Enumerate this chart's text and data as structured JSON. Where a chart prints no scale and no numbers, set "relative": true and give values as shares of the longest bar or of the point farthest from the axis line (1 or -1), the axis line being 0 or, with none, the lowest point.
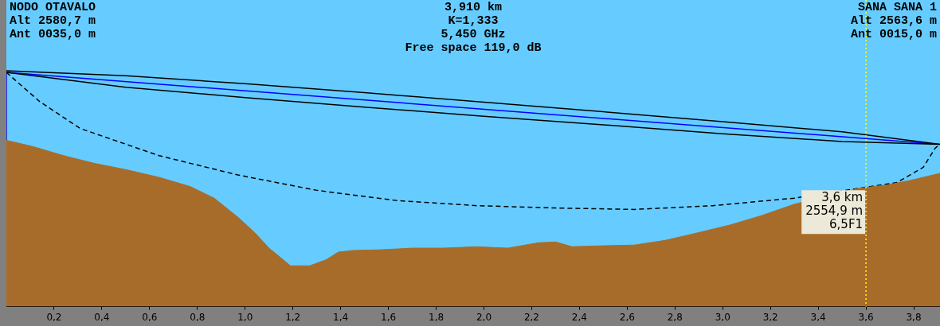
{
  "chart_data": {
    "type": "area",
    "relative": true,
    "annotations": [
      "NODO OTAVALO\nAlt 2580,7 m\nAnt 0035,0 m",
      "3,910 km",
      "K=1,333",
      "5,450 GHz",
      "Free space 119,0 dB",
      "SANA SANA 1\nAlt 2563,6 m\nAnt 0015,0 m",
      {
        "text": "3,6 km\n2554,9 m\n6,5F1",
        "x": 3.6,
        "y": 0.493
      }
    ],
    "xlim": [
      0,
      3.91
    ],
    "tick_labels": "x",
    "grid": false,
    "legend": false,
    "xticks": [
      {
        "value": 0.2,
        "label": "0,2"
      },
      {
        "value": 0.4,
        "label": "0,4"
      },
      {
        "value": 0.6,
        "label": "0,6"
      },
      {
        "value": 0.8,
        "label": "0,8"
      },
      {
        "value": 1.0,
        "label": "1,0"
      },
      {
        "value": 1.2,
        "label": "1,2"
      },
      {
        "value": 1.4,
        "label": "1,4"
      },
      {
        "value": 1.6,
        "label": "1,6"
      },
      {
        "value": 1.8,
        "label": "1,8"
      },
      {
        "value": 2.0,
        "label": "2,0"
      },
      {
        "value": 2.2,
        "label": "2,2"
      },
      {
        "value": 2.4,
        "label": "2,4"
      },
      {
        "value": 2.6,
        "label": "2,6"
      },
      {
        "value": 2.8,
        "label": "2,8"
      },
      {
        "value": 3.0,
        "label": "3,0"
      },
      {
        "value": 3.2,
        "label": "3,2"
      },
      {
        "value": 3.4,
        "label": "3,4"
      },
      {
        "value": 3.6,
        "label": "3,6"
      },
      {
        "value": 3.8,
        "label": "3,8"
      }
    ],
    "ref_lines": [
      {
        "axis": "x",
        "value": 3.6,
        "color": "#ffff00",
        "line_style": "dotted"
      }
    ],
    "series": [
      {
        "type": "area",
        "color": "#a86c2a",
        "x": [
          0,
          0.11,
          0.24,
          0.37,
          0.5,
          0.64,
          0.77,
          0.87,
          0.97,
          1.04,
          1.1,
          1.19,
          1.27,
          1.34,
          1.39,
          1.45,
          1.57,
          1.7,
          1.83,
          1.97,
          2.1,
          2.23,
          2.3,
          2.37,
          2.5,
          2.63,
          2.76,
          2.9,
          3.03,
          3.16,
          3.3,
          3.54,
          3.56,
          3.69,
          3.79,
          3.91
        ],
        "values": [
          0.705,
          0.679,
          0.64,
          0.607,
          0.581,
          0.548,
          0.509,
          0.46,
          0.379,
          0.314,
          0.248,
          0.173,
          0.173,
          0.199,
          0.231,
          0.238,
          0.241,
          0.248,
          0.248,
          0.254,
          0.248,
          0.271,
          0.274,
          0.254,
          0.258,
          0.261,
          0.281,
          0.314,
          0.346,
          0.385,
          0.434,
          0.493,
          0.5,
          0.516,
          0.536,
          0.565
        ]
      },
      {
        "type": "line",
        "color": "#000000",
        "x": [
          0,
          0.5,
          1,
          1.5,
          2,
          2.5,
          3,
          3.5,
          3.91,
          3.5,
          3,
          2.5,
          2,
          1.5,
          1,
          0.5,
          0
        ],
        "values": [
          1.0,
          0.979,
          0.945,
          0.907,
          0.867,
          0.826,
          0.784,
          0.741,
          0.688,
          0.7,
          0.733,
          0.771,
          0.807,
          0.846,
          0.886,
          0.93,
          0.993
        ]
      },
      {
        "type": "line",
        "color": "#0000ff",
        "x": [
          0,
          3.91
        ],
        "values": [
          0.993,
          0.688
        ]
      },
      {
        "type": "line",
        "color": "#000000",
        "line_style": "dashed",
        "x": [
          0,
          0.14,
          0.31,
          0.64,
          0.97,
          1.3,
          1.63,
          1.97,
          2.3,
          2.63,
          2.96,
          3.3,
          3.56,
          3.73,
          3.84,
          3.89,
          3.91
        ],
        "values": [
          0.993,
          0.869,
          0.755,
          0.64,
          0.558,
          0.493,
          0.45,
          0.428,
          0.418,
          0.412,
          0.428,
          0.46,
          0.5,
          0.526,
          0.591,
          0.672,
          0.688
        ]
      },
      {
        "type": "line",
        "color": "#0000ff",
        "x": [
          0,
          0
        ],
        "values": [
          0.705,
          0.993
        ]
      }
    ]
  }
}
